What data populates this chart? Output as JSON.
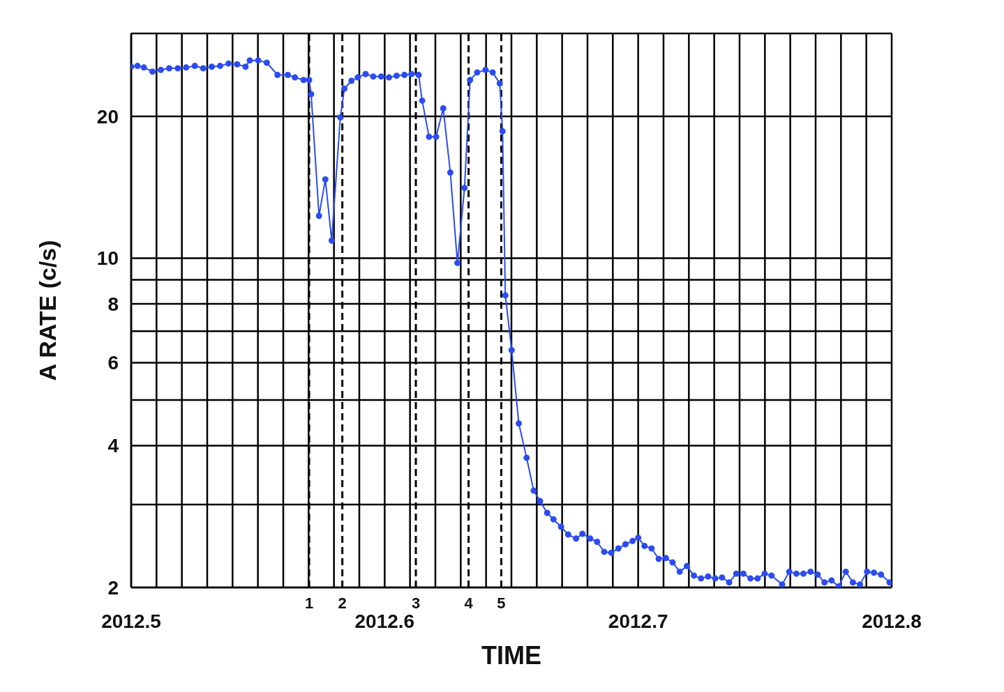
{
  "chart_data": {
    "type": "line",
    "xlabel": "TIME",
    "ylabel": "A RATE (c/s)",
    "x": [
      2012.5,
      2012.5025,
      2012.505,
      2012.5084,
      2012.5117,
      2012.515,
      2012.5184,
      2012.5217,
      2012.5251,
      2012.5284,
      2012.5318,
      2012.5351,
      2012.5384,
      2012.5418,
      2012.5451,
      2012.5468,
      2012.5501,
      2012.5535,
      2012.5577,
      2012.5618,
      2012.5646,
      2012.568,
      2012.5702,
      2012.571,
      2012.5741,
      2012.5766,
      2012.5791,
      2012.5825,
      2012.5841,
      2012.5869,
      2012.5894,
      2012.5925,
      2012.5955,
      2012.5986,
      2012.6017,
      2012.6047,
      2012.6078,
      2012.6106,
      2012.6134,
      2012.6148,
      2012.6175,
      2012.6203,
      2012.6231,
      2012.6259,
      2012.6287,
      2012.6315,
      2012.6337,
      2012.6365,
      2012.6398,
      2012.6426,
      2012.6454,
      2012.6465,
      2012.6476,
      2012.6501,
      2012.6529,
      2012.656,
      2012.6588,
      2012.6613,
      2012.6641,
      2012.6666,
      2012.6696,
      2012.6724,
      2012.6755,
      2012.678,
      2012.6811,
      2012.6838,
      2012.6866,
      2012.6894,
      2012.6922,
      2012.695,
      2012.6978,
      2012.7,
      2012.7025,
      2012.7053,
      2012.7081,
      2012.7109,
      2012.7136,
      2012.7164,
      2012.7192,
      2012.722,
      2012.7248,
      2012.7276,
      2012.7304,
      2012.7331,
      2012.7359,
      2012.7387,
      2012.7415,
      2012.7443,
      2012.7471,
      2012.7499,
      2012.7526,
      2012.7568,
      2012.7596,
      2012.7624,
      2012.7652,
      2012.768,
      2012.7708,
      2012.7735,
      2012.7763,
      2012.7791,
      2012.7819,
      2012.7847,
      2012.7875,
      2012.7903,
      2012.793,
      2012.7958,
      2012.7992
    ],
    "series": [
      {
        "color": "#2b4cf0",
        "values": [
          25.5,
          25.6,
          25.4,
          24.9,
          25.1,
          25.3,
          25.3,
          25.4,
          25.6,
          25.3,
          25.5,
          25.6,
          25.9,
          25.8,
          25.5,
          26.3,
          26.3,
          26.0,
          24.5,
          24.5,
          24.2,
          23.9,
          23.9,
          22.3,
          12.3,
          14.7,
          10.9,
          19.9,
          22.9,
          23.8,
          24.2,
          24.6,
          24.3,
          24.3,
          24.2,
          24.4,
          24.5,
          24.6,
          24.5,
          21.6,
          18.1,
          18.1,
          20.8,
          15.2,
          9.77,
          14.1,
          23.9,
          24.8,
          25.1,
          24.8,
          23.5,
          18.6,
          8.34,
          6.38,
          4.46,
          3.77,
          3.21,
          3.05,
          2.88,
          2.79,
          2.69,
          2.59,
          2.54,
          2.6,
          2.54,
          2.5,
          2.38,
          2.37,
          2.42,
          2.47,
          2.51,
          2.55,
          2.45,
          2.42,
          2.3,
          2.31,
          2.26,
          2.16,
          2.22,
          2.12,
          2.09,
          2.11,
          2.09,
          2.1,
          2.05,
          2.14,
          2.14,
          2.09,
          2.09,
          2.14,
          2.12,
          2.03,
          2.16,
          2.14,
          2.14,
          2.16,
          2.13,
          2.05,
          2.07,
          2.01,
          2.16,
          2.05,
          2.03,
          2.16,
          2.15,
          2.13,
          2.05
        ]
      }
    ],
    "xlim": [
      2012.5,
      2012.8
    ],
    "xticks": [
      2012.5,
      {
        "value": 2012.51,
        "label": null
      },
      {
        "value": 2012.52,
        "label": null
      },
      {
        "value": 2012.53,
        "label": null
      },
      {
        "value": 2012.54,
        "label": null
      },
      {
        "value": 2012.55,
        "label": null
      },
      {
        "value": 2012.56,
        "label": null
      },
      {
        "value": 2012.57,
        "label": null
      },
      {
        "value": 2012.58,
        "label": null
      },
      {
        "value": 2012.59,
        "label": null
      },
      2012.6,
      {
        "value": 2012.61,
        "label": null
      },
      {
        "value": 2012.62,
        "label": null
      },
      {
        "value": 2012.63,
        "label": null
      },
      {
        "value": 2012.64,
        "label": null
      },
      {
        "value": 2012.65,
        "label": null
      },
      {
        "value": 2012.66,
        "label": null
      },
      {
        "value": 2012.67,
        "label": null
      },
      {
        "value": 2012.68,
        "label": null
      },
      {
        "value": 2012.69,
        "label": null
      },
      2012.7,
      {
        "value": 2012.71,
        "label": null
      },
      {
        "value": 2012.72,
        "label": null
      },
      {
        "value": 2012.73,
        "label": null
      },
      {
        "value": 2012.74,
        "label": null
      },
      {
        "value": 2012.75,
        "label": null
      },
      {
        "value": 2012.76,
        "label": null
      },
      {
        "value": 2012.77,
        "label": null
      },
      {
        "value": 2012.78,
        "label": null
      },
      {
        "value": 2012.79,
        "label": null
      },
      2012.8
    ],
    "ylim": [
      2,
      30
    ],
    "yticks": [
      2,
      {
        "value": 3,
        "label": null
      },
      4,
      {
        "value": 5,
        "label": null
      },
      6,
      {
        "value": 7,
        "label": null
      },
      8,
      {
        "value": 9,
        "label": null
      },
      10,
      20,
      {
        "value": 30,
        "label": null
      }
    ],
    "log": "y",
    "grid": true,
    "marker": "circle",
    "line_style": "solid",
    "ref_lines": [
      {
        "axis": "x",
        "value": 2012.5702,
        "color": "#000000",
        "line_style": "dashed"
      },
      {
        "axis": "x",
        "value": 2012.5833,
        "color": "#000000",
        "line_style": "dashed"
      },
      {
        "axis": "x",
        "value": 2012.6123,
        "color": "#000000",
        "line_style": "dashed"
      },
      {
        "axis": "x",
        "value": 2012.6331,
        "color": "#000000",
        "line_style": "dashed"
      },
      {
        "axis": "x",
        "value": 2012.646,
        "color": "#000000",
        "line_style": "dashed"
      }
    ],
    "annotations": [
      {
        "text": "1",
        "x": 2012.5702,
        "y": 2
      },
      {
        "text": "2",
        "x": 2012.5833,
        "y": 2
      },
      {
        "text": "3",
        "x": 2012.6123,
        "y": 2
      },
      {
        "text": "4",
        "x": 2012.6331,
        "y": 2
      },
      {
        "text": "5",
        "x": 2012.646,
        "y": 2
      }
    ]
  }
}
